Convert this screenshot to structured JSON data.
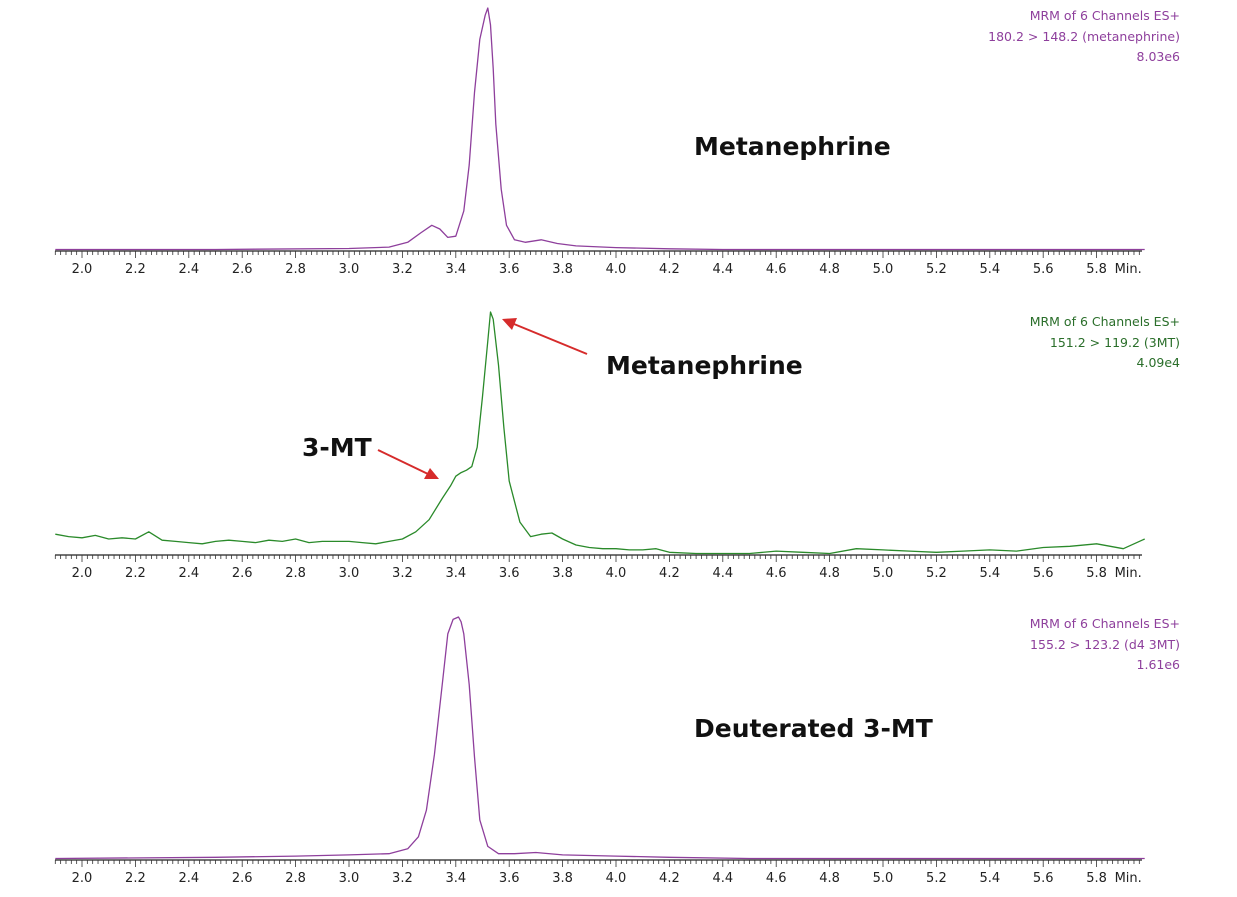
{
  "chart_data": [
    {
      "type": "line",
      "info": [
        "MRM of 6 Channels ES+",
        "180.2 > 148.2 (metanephrine)",
        "8.03e6"
      ],
      "color": "#8e3f9c",
      "xlim": [
        1.9,
        5.98
      ],
      "ylim": [
        0,
        1.0
      ],
      "x_ticks": [
        "2.0",
        "2.2",
        "2.4",
        "2.6",
        "2.8",
        "3.0",
        "3.2",
        "3.4",
        "3.6",
        "3.8",
        "4.0",
        "4.2",
        "4.4",
        "4.6",
        "4.8",
        "5.0",
        "5.2",
        "5.4",
        "5.6",
        "5.8"
      ],
      "x_unit": "Min.",
      "annotations": [
        {
          "text": "Metanephrine"
        }
      ],
      "x": [
        1.9,
        2.5,
        3.0,
        3.15,
        3.22,
        3.27,
        3.31,
        3.34,
        3.37,
        3.4,
        3.43,
        3.45,
        3.47,
        3.49,
        3.51,
        3.52,
        3.53,
        3.54,
        3.55,
        3.57,
        3.59,
        3.62,
        3.66,
        3.72,
        3.78,
        3.85,
        4.0,
        4.2,
        4.4,
        5.98
      ],
      "y": [
        0.0,
        0.0,
        0.004,
        0.01,
        0.03,
        0.07,
        0.1,
        0.085,
        0.05,
        0.055,
        0.16,
        0.35,
        0.65,
        0.87,
        0.97,
        1.0,
        0.93,
        0.75,
        0.52,
        0.25,
        0.1,
        0.04,
        0.03,
        0.04,
        0.025,
        0.015,
        0.008,
        0.003,
        0.0,
        0.0
      ]
    },
    {
      "type": "line",
      "info": [
        "MRM of 6 Channels ES+",
        "151.2 > 119.2 (3MT)",
        "4.09e4"
      ],
      "color": "#2a8a2a",
      "xlim": [
        1.9,
        5.98
      ],
      "ylim": [
        0,
        1.0
      ],
      "x_ticks": [
        "2.0",
        "2.2",
        "2.4",
        "2.6",
        "2.8",
        "3.0",
        "3.2",
        "3.4",
        "3.6",
        "3.8",
        "4.0",
        "4.2",
        "4.4",
        "4.6",
        "4.8",
        "5.0",
        "5.2",
        "5.4",
        "5.6",
        "5.8"
      ],
      "x_unit": "Min.",
      "annotations": [
        {
          "text": "Metanephrine"
        },
        {
          "text": "3-MT"
        }
      ],
      "x": [
        1.9,
        1.95,
        2.0,
        2.05,
        2.1,
        2.15,
        2.2,
        2.25,
        2.3,
        2.35,
        2.4,
        2.45,
        2.5,
        2.55,
        2.6,
        2.65,
        2.7,
        2.75,
        2.8,
        2.85,
        2.9,
        2.95,
        3.0,
        3.05,
        3.1,
        3.15,
        3.2,
        3.25,
        3.3,
        3.35,
        3.38,
        3.4,
        3.42,
        3.44,
        3.46,
        3.48,
        3.5,
        3.52,
        3.53,
        3.54,
        3.56,
        3.58,
        3.6,
        3.64,
        3.68,
        3.72,
        3.76,
        3.8,
        3.85,
        3.9,
        3.95,
        4.0,
        4.05,
        4.1,
        4.15,
        4.2,
        4.3,
        4.4,
        4.5,
        4.6,
        4.7,
        4.8,
        4.9,
        5.0,
        5.1,
        5.2,
        5.3,
        5.4,
        5.5,
        5.6,
        5.7,
        5.8,
        5.9,
        5.98
      ],
      "y": [
        0.08,
        0.07,
        0.065,
        0.075,
        0.06,
        0.065,
        0.06,
        0.09,
        0.055,
        0.05,
        0.045,
        0.04,
        0.05,
        0.055,
        0.05,
        0.045,
        0.055,
        0.05,
        0.06,
        0.045,
        0.05,
        0.05,
        0.05,
        0.045,
        0.04,
        0.05,
        0.06,
        0.09,
        0.14,
        0.23,
        0.28,
        0.32,
        0.335,
        0.345,
        0.36,
        0.44,
        0.65,
        0.88,
        1.0,
        0.97,
        0.78,
        0.52,
        0.3,
        0.13,
        0.07,
        0.08,
        0.085,
        0.06,
        0.035,
        0.025,
        0.02,
        0.02,
        0.015,
        0.015,
        0.02,
        0.005,
        0.0,
        0.0,
        0.0,
        0.01,
        0.005,
        0.0,
        0.02,
        0.015,
        0.01,
        0.005,
        0.01,
        0.015,
        0.01,
        0.025,
        0.03,
        0.04,
        0.02,
        0.06
      ]
    },
    {
      "type": "line",
      "info": [
        "MRM of 6 Channels ES+",
        "155.2 > 123.2 (d4 3MT)",
        "1.61e6"
      ],
      "color": "#8e3f9c",
      "xlim": [
        1.9,
        5.98
      ],
      "ylim": [
        0,
        1.0
      ],
      "x_ticks": [
        "2.0",
        "2.2",
        "2.4",
        "2.6",
        "2.8",
        "3.0",
        "3.2",
        "3.4",
        "3.6",
        "3.8",
        "4.0",
        "4.2",
        "4.4",
        "4.6",
        "4.8",
        "5.0",
        "5.2",
        "5.4",
        "5.6",
        "5.8"
      ],
      "x_unit": "Min.",
      "annotations": [
        {
          "text": "Deuterated 3-MT"
        }
      ],
      "x": [
        1.9,
        2.5,
        2.8,
        3.0,
        3.15,
        3.22,
        3.26,
        3.29,
        3.32,
        3.35,
        3.37,
        3.39,
        3.41,
        3.42,
        3.43,
        3.45,
        3.47,
        3.49,
        3.52,
        3.56,
        3.62,
        3.7,
        3.8,
        4.0,
        4.2,
        4.5,
        5.98
      ],
      "y": [
        0.0,
        0.005,
        0.01,
        0.015,
        0.02,
        0.04,
        0.09,
        0.2,
        0.43,
        0.73,
        0.93,
        0.99,
        1.0,
        0.98,
        0.93,
        0.72,
        0.42,
        0.16,
        0.05,
        0.02,
        0.02,
        0.025,
        0.015,
        0.01,
        0.005,
        0.0,
        0.0
      ]
    }
  ]
}
